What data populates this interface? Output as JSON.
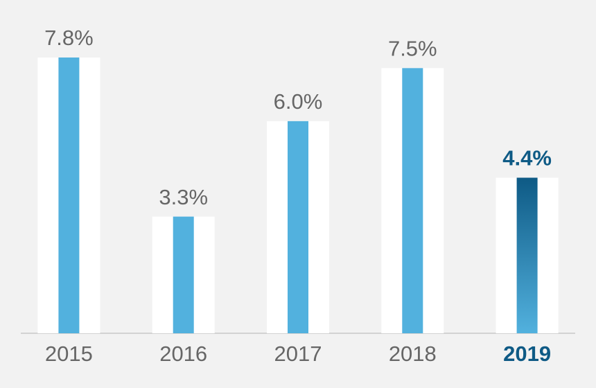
{
  "chart_data": {
    "type": "bar",
    "categories": [
      "2015",
      "2016",
      "2017",
      "2018",
      "2019"
    ],
    "values": [
      7.8,
      3.3,
      6.0,
      7.5,
      4.4
    ],
    "value_labels": [
      "7.8%",
      "3.3%",
      "6.0%",
      "7.5%",
      "4.4%"
    ],
    "colors": [
      "#52b1de",
      "#52b1de",
      "#52b1de",
      "#52b1de",
      "#0e5a85"
    ]
  }
}
